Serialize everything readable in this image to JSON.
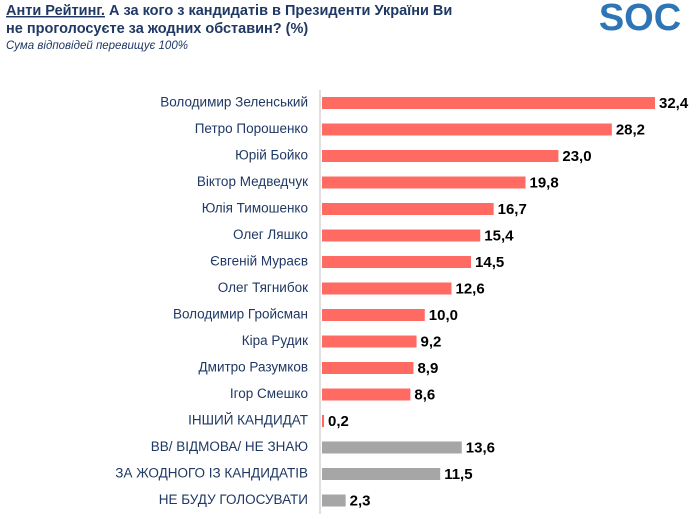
{
  "chart_data": {
    "type": "bar",
    "orientation": "horizontal",
    "logo": "SOC",
    "title_prefix": "Анти Рейтинг.",
    "title": "А за кого з кандидатів в Президенти України Ви не проголосуєте за жодних обставин? (%)",
    "subtitle": "Сума відповідей перевищує 100%",
    "categories": [
      "Володимир Зеленський",
      "Петро Порошенко",
      "Юрій Бойко",
      "Віктор Медведчук",
      "Юлія Тимошенко",
      "Олег Ляшко",
      "Євгеній Мураєв",
      "Олег Тягнибок",
      "Володимир Гройсман",
      "Кіра Рудик",
      "Дмитро Разумков",
      "Ігор Смешко",
      "ІНШИЙ КАНДИДАТ",
      "ВВ/ ВІДМОВА/ НЕ ЗНАЮ",
      "ЗА ЖОДНОГО ІЗ КАНДИДАТІВ",
      "НЕ БУДУ ГОЛОСУВАТИ"
    ],
    "values": [
      32.4,
      28.2,
      23.0,
      19.8,
      16.7,
      15.4,
      14.5,
      12.6,
      10.0,
      9.2,
      8.9,
      8.6,
      0.2,
      13.6,
      11.5,
      2.3
    ],
    "value_labels": [
      "32,4",
      "28,2",
      "23,0",
      "19,8",
      "16,7",
      "15,4",
      "14,5",
      "12,6",
      "10,0",
      "9,2",
      "8,9",
      "8,6",
      "0,2",
      "13,6",
      "11,5",
      "2,3"
    ],
    "colors": [
      "#ff6b63",
      "#ff6b63",
      "#ff6b63",
      "#ff6b63",
      "#ff6b63",
      "#ff6b63",
      "#ff6b63",
      "#ff6b63",
      "#ff6b63",
      "#ff6b63",
      "#ff6b63",
      "#ff6b63",
      "#ff6b63",
      "#a6a6a6",
      "#a6a6a6",
      "#a6a6a6"
    ]
  }
}
